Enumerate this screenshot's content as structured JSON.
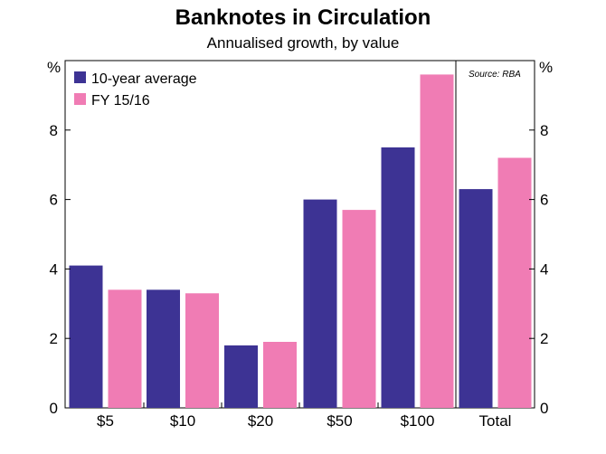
{
  "chart_data": {
    "type": "bar",
    "title": "Banknotes in Circulation",
    "subtitle": "Annualised growth, by value",
    "ylabel_left": "%",
    "ylabel_right": "%",
    "ylim": [
      0,
      10
    ],
    "yticks": [
      0,
      2,
      4,
      6,
      8
    ],
    "categories": [
      "$5",
      "$10",
      "$20",
      "$50",
      "$100",
      "Total"
    ],
    "series": [
      {
        "name": "10-year average",
        "color": "#3d3394",
        "values": [
          4.1,
          3.4,
          1.8,
          6.0,
          7.5,
          6.3
        ]
      },
      {
        "name": "FY 15/16",
        "color": "#f07cb4",
        "values": [
          3.4,
          3.3,
          1.9,
          5.7,
          9.6,
          7.2
        ]
      }
    ],
    "legend_position": "top-left",
    "grid": false,
    "source": "Source: RBA"
  }
}
